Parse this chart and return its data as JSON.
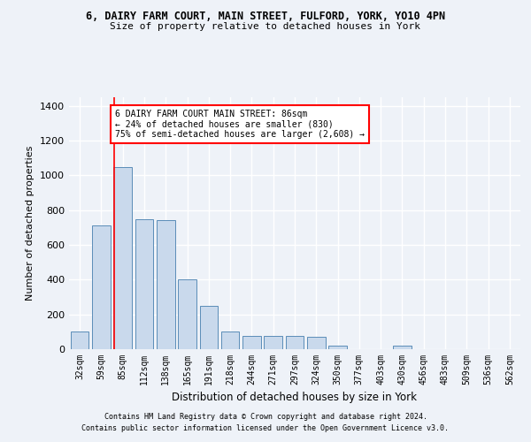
{
  "title1": "6, DAIRY FARM COURT, MAIN STREET, FULFORD, YORK, YO10 4PN",
  "title2": "Size of property relative to detached houses in York",
  "xlabel": "Distribution of detached houses by size in York",
  "ylabel": "Number of detached properties",
  "categories": [
    "32sqm",
    "59sqm",
    "85sqm",
    "112sqm",
    "138sqm",
    "165sqm",
    "191sqm",
    "218sqm",
    "244sqm",
    "271sqm",
    "297sqm",
    "324sqm",
    "350sqm",
    "377sqm",
    "403sqm",
    "430sqm",
    "456sqm",
    "483sqm",
    "509sqm",
    "536sqm",
    "562sqm"
  ],
  "values": [
    100,
    710,
    1050,
    750,
    745,
    400,
    250,
    100,
    75,
    75,
    75,
    70,
    20,
    0,
    0,
    20,
    0,
    0,
    0,
    0,
    0
  ],
  "bar_color": "#c9d9ec",
  "bar_edge_color": "#5b8db8",
  "red_line_index": 2,
  "annotation_lines": [
    "6 DAIRY FARM COURT MAIN STREET: 86sqm",
    "← 24% of detached houses are smaller (830)",
    "75% of semi-detached houses are larger (2,608) →"
  ],
  "ylim": [
    0,
    1450
  ],
  "yticks": [
    0,
    200,
    400,
    600,
    800,
    1000,
    1200,
    1400
  ],
  "footnote1": "Contains HM Land Registry data © Crown copyright and database right 2024.",
  "footnote2": "Contains public sector information licensed under the Open Government Licence v3.0.",
  "bg_color": "#eef2f8",
  "plot_bg_color": "#eef2f8",
  "grid_color": "#ffffff"
}
